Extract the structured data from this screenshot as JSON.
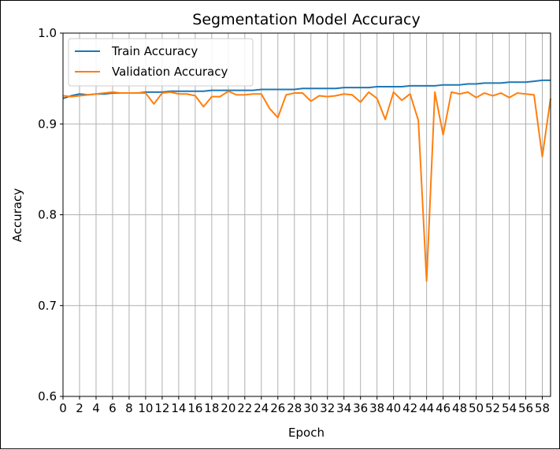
{
  "chart_data": {
    "type": "line",
    "title": "Segmentation Model Accuracy",
    "xlabel": "Epoch",
    "ylabel": "Accuracy",
    "xlim": [
      0,
      59
    ],
    "ylim": [
      0.6,
      1.0
    ],
    "grid": true,
    "legend_position": "top-left",
    "x_ticks": [
      0,
      2,
      4,
      6,
      8,
      10,
      12,
      14,
      16,
      18,
      20,
      22,
      24,
      26,
      28,
      30,
      32,
      34,
      36,
      38,
      40,
      42,
      44,
      46,
      48,
      50,
      52,
      54,
      56,
      58
    ],
    "y_ticks": [
      0.6,
      0.7,
      0.8,
      0.9,
      1.0
    ],
    "y_tick_labels": [
      "0.6",
      "0.7",
      "0.8",
      "0.9",
      "1.0"
    ],
    "x": [
      0,
      1,
      2,
      3,
      4,
      5,
      6,
      7,
      8,
      9,
      10,
      11,
      12,
      13,
      14,
      15,
      16,
      17,
      18,
      19,
      20,
      21,
      22,
      23,
      24,
      25,
      26,
      27,
      28,
      29,
      30,
      31,
      32,
      33,
      34,
      35,
      36,
      37,
      38,
      39,
      40,
      41,
      42,
      43,
      44,
      45,
      46,
      47,
      48,
      49,
      50,
      51,
      52,
      53,
      54,
      55,
      56,
      57,
      58,
      59
    ],
    "series": [
      {
        "name": "Train Accuracy",
        "color": "#1f77b4",
        "values": [
          0.928,
          0.931,
          0.933,
          0.932,
          0.933,
          0.933,
          0.934,
          0.934,
          0.934,
          0.934,
          0.935,
          0.935,
          0.935,
          0.936,
          0.936,
          0.936,
          0.936,
          0.936,
          0.937,
          0.937,
          0.937,
          0.937,
          0.937,
          0.937,
          0.938,
          0.938,
          0.938,
          0.938,
          0.938,
          0.939,
          0.939,
          0.939,
          0.939,
          0.939,
          0.94,
          0.94,
          0.94,
          0.94,
          0.941,
          0.941,
          0.941,
          0.941,
          0.942,
          0.942,
          0.942,
          0.942,
          0.943,
          0.943,
          0.943,
          0.944,
          0.944,
          0.945,
          0.945,
          0.945,
          0.946,
          0.946,
          0.946,
          0.947,
          0.948,
          0.948
        ]
      },
      {
        "name": "Validation Accuracy",
        "color": "#ff7f0e",
        "values": [
          0.931,
          0.93,
          0.931,
          0.932,
          0.933,
          0.934,
          0.935,
          0.934,
          0.934,
          0.934,
          0.934,
          0.922,
          0.934,
          0.935,
          0.933,
          0.933,
          0.931,
          0.919,
          0.93,
          0.93,
          0.936,
          0.932,
          0.932,
          0.933,
          0.933,
          0.917,
          0.907,
          0.932,
          0.934,
          0.934,
          0.925,
          0.931,
          0.93,
          0.931,
          0.933,
          0.932,
          0.924,
          0.935,
          0.928,
          0.905,
          0.935,
          0.926,
          0.933,
          0.904,
          0.727,
          0.935,
          0.888,
          0.935,
          0.933,
          0.935,
          0.929,
          0.934,
          0.931,
          0.934,
          0.929,
          0.934,
          0.933,
          0.932,
          0.864,
          0.928
        ]
      }
    ]
  }
}
